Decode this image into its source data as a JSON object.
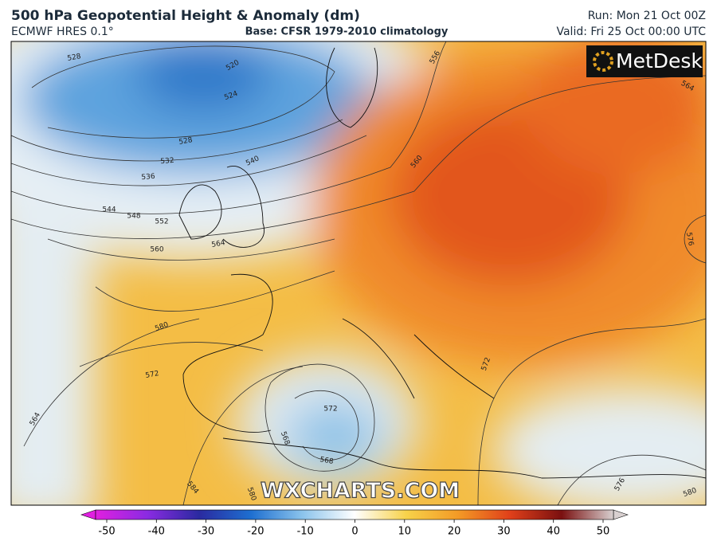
{
  "header": {
    "title": "500 hPa Geopotential Height & Anomaly (dm)",
    "model": "ECMWF HRES 0.1°",
    "base": "Base: CFSR 1979-2010 climatology",
    "run": "Run: Mon 21 Oct 00Z",
    "valid": "Valid: Fri 25 Oct 00:00 UTC"
  },
  "logo": "MetDesk",
  "watermark": "WXCHARTS.COM",
  "contour_labels": [
    "528",
    "520",
    "524",
    "528",
    "532",
    "536",
    "540",
    "544",
    "548",
    "552",
    "556",
    "560",
    "560",
    "564",
    "564",
    "576",
    "580",
    "572",
    "564",
    "572",
    "568",
    "568",
    "584",
    "580",
    "572",
    "576",
    "580"
  ],
  "colorbar": {
    "ticks": [
      -50,
      -40,
      -30,
      -20,
      -10,
      0,
      10,
      20,
      30,
      40,
      50
    ]
  }
}
